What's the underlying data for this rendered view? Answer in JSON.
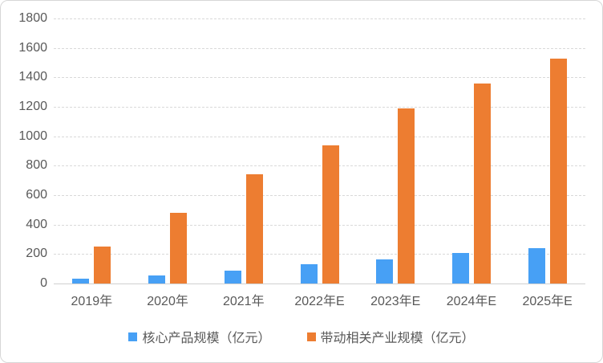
{
  "chart_data": {
    "type": "bar",
    "title": "",
    "xlabel": "",
    "ylabel": "",
    "categories": [
      "2019年",
      "2020年",
      "2021年",
      "2022年E",
      "2023年E",
      "2024年E",
      "2025年E"
    ],
    "series": [
      {
        "name": "核心产品规模（亿元）",
        "color": "#47A0F5",
        "values": [
          35,
          55,
          90,
          130,
          165,
          205,
          240
        ]
      },
      {
        "name": "带动相关产业规模（亿元）",
        "color": "#ED7D31",
        "values": [
          250,
          480,
          740,
          940,
          1190,
          1360,
          1525
        ]
      }
    ],
    "ylim": [
      0,
      1800
    ],
    "yticks": [
      0,
      200,
      400,
      600,
      800,
      1000,
      1200,
      1400,
      1600,
      1800
    ],
    "grid": true,
    "gridline_style": "dashed",
    "legend_position": "bottom"
  },
  "colors": {
    "series_core": "#47A0F5",
    "series_related": "#ED7D31",
    "gridline": "#d9d9d9",
    "axis_line": "#d0d0d0",
    "tick_text": "#595959",
    "frame_border": "#d7d7d7",
    "background": "#ffffff"
  }
}
